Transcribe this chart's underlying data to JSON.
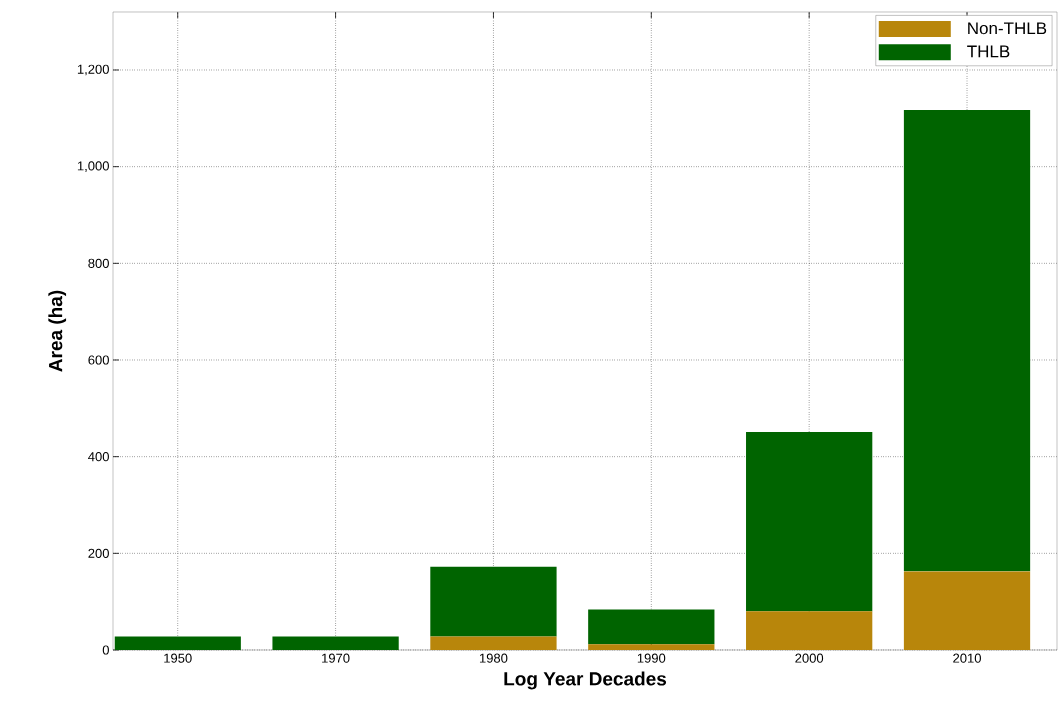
{
  "chart_data": {
    "type": "bar",
    "stacked": true,
    "xlabel": "Log Year Decades",
    "ylabel": "Area (ha)",
    "categories": [
      "1950",
      "1970",
      "1980",
      "1990",
      "2000",
      "2010"
    ],
    "series": [
      {
        "name": "Non-THLB",
        "color": "#b8860b",
        "values": [
          0,
          0,
          28,
          12,
          80,
          163
        ]
      },
      {
        "name": "THLB",
        "color": "#006400",
        "values": [
          28,
          28,
          144,
          72,
          371,
          954
        ]
      }
    ],
    "ylim": [
      0,
      1320
    ],
    "yticks": [
      0,
      200,
      400,
      600,
      800,
      {
        "value": 1000,
        "label": "1,000"
      },
      {
        "value": 1200,
        "label": "1,200"
      }
    ],
    "grid": true,
    "legend": "top right"
  }
}
